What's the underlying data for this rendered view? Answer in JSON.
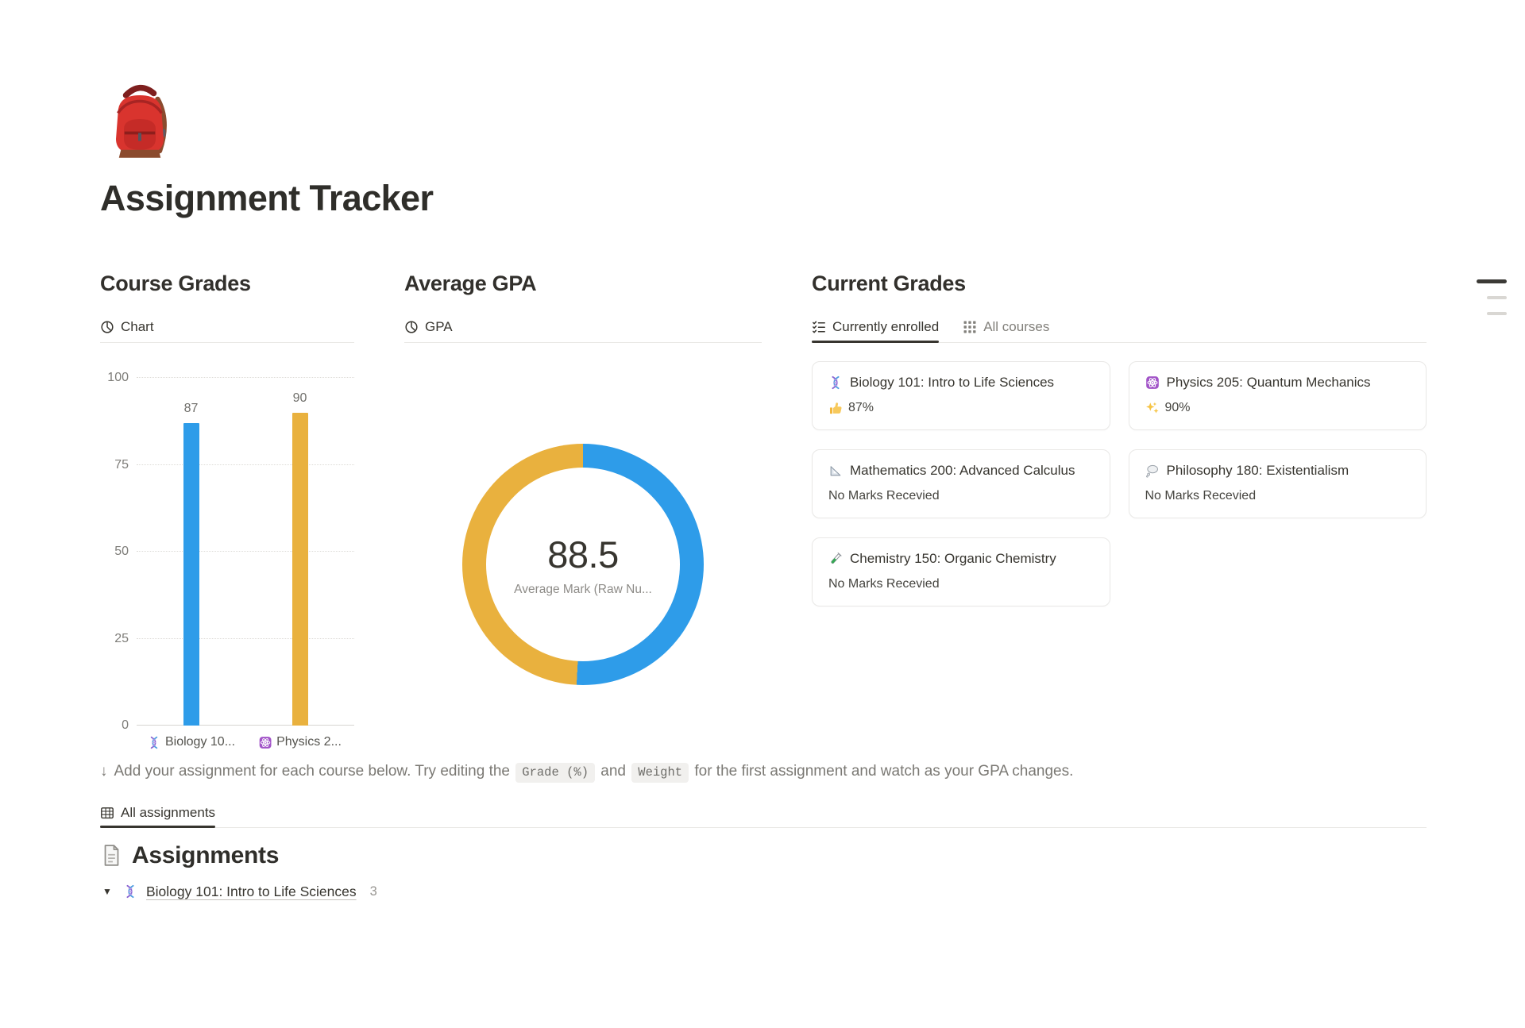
{
  "page": {
    "icon": "backpack-emoji",
    "title": "Assignment Tracker"
  },
  "course_grades": {
    "heading": "Course Grades",
    "tab": "Chart"
  },
  "average_gpa": {
    "heading": "Average GPA",
    "tab": "GPA"
  },
  "current_grades": {
    "heading": "Current Grades",
    "tab_enrolled": "Currently enrolled",
    "tab_all": "All courses",
    "cards": [
      {
        "icon": "dna-emoji",
        "title": "Biology 101: Intro to Life Sciences",
        "status_icon": "thumbs-up-emoji",
        "status": "87%"
      },
      {
        "icon": "atom-emoji",
        "title": "Physics 205: Quantum Mechanics",
        "status_icon": "sparkles-emoji",
        "status": "90%"
      },
      {
        "icon": "triangular-ruler-emoji",
        "title": "Mathematics 200: Advanced Calculus",
        "status_icon": null,
        "status": "No Marks Recevied"
      },
      {
        "icon": "thought-balloon-emoji",
        "title": "Philosophy 180: Existentialism",
        "status_icon": null,
        "status": "No Marks Recevied"
      },
      {
        "icon": "test-tube-emoji",
        "title": "Chemistry 150: Organic Chemistry",
        "status_icon": null,
        "status": "No Marks Recevied"
      }
    ]
  },
  "help": {
    "arrow": "↓",
    "before": "Add your assignment for each course below. Try editing the ",
    "code1": "Grade (%)",
    "mid": " and ",
    "code2": "Weight",
    "after": " for the first assignment and watch as your GPA changes."
  },
  "assignments": {
    "tab": "All assignments",
    "heading": "Assignments",
    "toggle_arrow": "▼",
    "course_icon": "dna-emoji",
    "course": "Biology 101: Intro to Life Sciences",
    "count": "3"
  },
  "colors": {
    "chart_blue": "#2e9ce9",
    "chart_yellow": "#e9b13e",
    "text_dark": "#37352f",
    "text_gray": "#7b7974"
  },
  "chart_data": [
    {
      "type": "bar",
      "title": "Course Grades",
      "categories": [
        {
          "icon": "dna-emoji",
          "label": "Biology 10..."
        },
        {
          "icon": "atom-emoji",
          "label": "Physics 2..."
        }
      ],
      "values": [
        87,
        90
      ],
      "colors": [
        "#2e9ce9",
        "#e9b13e"
      ],
      "xlabel": "",
      "ylabel": "",
      "ylim": [
        0,
        100
      ],
      "yticks": [
        0,
        25,
        50,
        75,
        100
      ],
      "grid": "dotted-horizontal",
      "legend": "none"
    },
    {
      "type": "donut",
      "title": "Average GPA",
      "center_value": "88.5",
      "center_label": "Average Mark (Raw Nu...",
      "slices": [
        {
          "value": 90,
          "color": "#2e9ce9"
        },
        {
          "value": 87,
          "color": "#e9b13e"
        }
      ],
      "start_angle_deg": 0,
      "legend": "none"
    }
  ]
}
